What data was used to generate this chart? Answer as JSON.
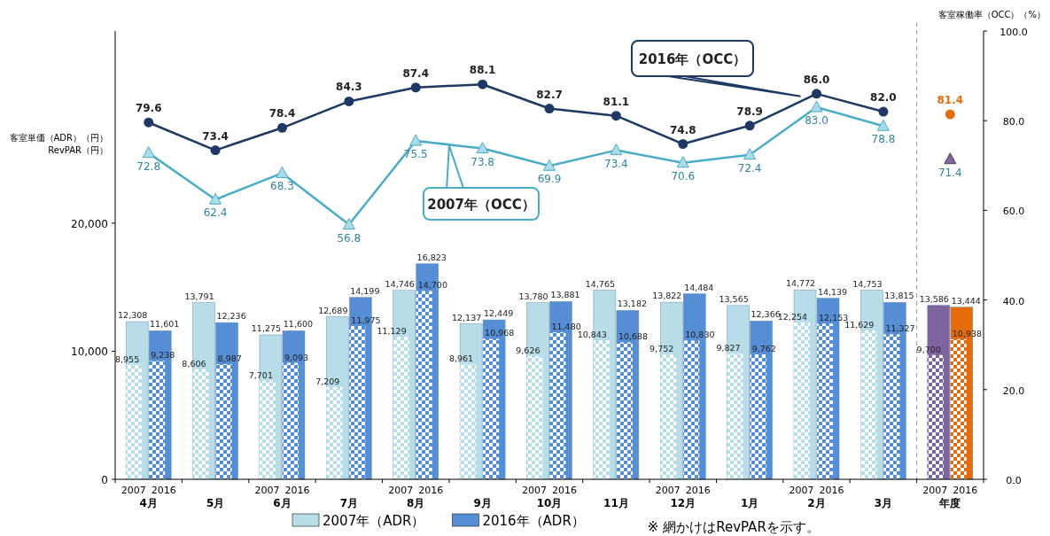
{
  "chart_data": {
    "type": "bar",
    "ylabel": "客室単価（ADR）（円）\nRevPAR（円）",
    "y2label": "客室稼働率（OCC）（%）",
    "categories": [
      "4月",
      "5月",
      "6月",
      "7月",
      "8月",
      "9月",
      "10月",
      "11月",
      "12月",
      "1月",
      "2月",
      "3月",
      "年度"
    ],
    "ylim": [
      0,
      35000
    ],
    "yticks": [
      0,
      {
        "value": 10000,
        "label": "10,000"
      },
      {
        "value": 20000,
        "label": "20,000"
      }
    ],
    "y2lim": [
      0,
      100
    ],
    "y2ticks": [
      {
        "value": 0,
        "label": "0.0"
      },
      {
        "value": 20,
        "label": "20.0"
      },
      {
        "value": 40,
        "label": "40.0"
      },
      {
        "value": 60,
        "label": "60.0"
      },
      {
        "value": 80,
        "label": "80.0"
      },
      {
        "value": 100,
        "label": "100.0"
      }
    ],
    "data_labels": true,
    "legend": "bottom",
    "series": [
      {
        "name": "2007年（ADR）",
        "color": "#b7dee8",
        "colors": [
          "#b7dee8",
          "#b7dee8",
          "#b7dee8",
          "#b7dee8",
          "#b7dee8",
          "#b7dee8",
          "#b7dee8",
          "#b7dee8",
          "#b7dee8",
          "#b7dee8",
          "#b7dee8",
          "#b7dee8",
          "#8064a2"
        ],
        "values": [
          12308,
          13791,
          11275,
          12689,
          14746,
          12137,
          13780,
          14765,
          13822,
          13565,
          14772,
          14753,
          13586
        ],
        "value_labels": [
          "12,308",
          "13,791",
          "11,275",
          "12,689",
          "14,746",
          "12,137",
          "13,780",
          "14,765",
          "13,822",
          "13,565",
          "14,772",
          "14,753",
          "13,586"
        ]
      },
      {
        "name": "2016年（ADR）",
        "color": "#558ed5",
        "colors": [
          "#558ed5",
          "#558ed5",
          "#558ed5",
          "#558ed5",
          "#558ed5",
          "#558ed5",
          "#558ed5",
          "#558ed5",
          "#558ed5",
          "#558ed5",
          "#558ed5",
          "#558ed5",
          "#e46c0a"
        ],
        "values": [
          11601,
          12236,
          11600,
          14199,
          16823,
          12449,
          13881,
          13182,
          14484,
          12366,
          14139,
          13815,
          13444
        ],
        "value_labels": [
          "11,601",
          "12,236",
          "11,600",
          "14,199",
          "16,823",
          "12,449",
          "13,881",
          "13,182",
          "14,484",
          "12,366",
          "14,139",
          "13,815",
          "13,444"
        ]
      },
      {
        "colors": [
          "#b7dee8",
          "#b7dee8",
          "#b7dee8",
          "#b7dee8",
          "#b7dee8",
          "#b7dee8",
          "#b7dee8",
          "#b7dee8",
          "#b7dee8",
          "#b7dee8",
          "#b7dee8",
          "#b7dee8",
          "#8064a2"
        ],
        "values": [
          8955,
          8606,
          7701,
          7209,
          11129,
          8961,
          9626,
          10843,
          9752,
          9827,
          12254,
          11629,
          9700
        ],
        "value_labels": [
          "8,955",
          "8,606",
          "7,701",
          "7,209",
          "11,129",
          "8,961",
          "9,626",
          "10,843",
          "9,752",
          "9,827",
          "12,254",
          "11,629",
          "9,700"
        ]
      },
      {
        "colors": [
          "#558ed5",
          "#558ed5",
          "#558ed5",
          "#558ed5",
          "#558ed5",
          "#558ed5",
          "#558ed5",
          "#558ed5",
          "#558ed5",
          "#558ed5",
          "#558ed5",
          "#558ed5",
          "#e46c0a"
        ],
        "values": [
          9238,
          8987,
          9093,
          11975,
          14700,
          10968,
          11480,
          10688,
          10830,
          9762,
          12153,
          11327,
          10938
        ],
        "value_labels": [
          "9,238",
          "8,987",
          "9,093",
          "11,975",
          "14,700",
          "10,968",
          "11,480",
          "10,688",
          "10,830",
          "9,762",
          "12,153",
          "11,327",
          "10,938"
        ]
      },
      {
        "name": "2007年（OCC）",
        "type": "line",
        "axis": "y2",
        "color": "#4bacc6",
        "marker": "triangle",
        "values": [
          72.8,
          62.4,
          68.3,
          56.8,
          75.5,
          73.8,
          69.9,
          73.4,
          70.6,
          72.4,
          83.0,
          78.8,
          null
        ],
        "value_labels": [
          "72.8",
          "62.4",
          "68.3",
          "56.8",
          "75.5",
          "73.8",
          "69.9",
          "73.4",
          "70.6",
          "72.4",
          "83.0",
          "78.8",
          null
        ]
      },
      {
        "name": "2016年（OCC）",
        "type": "line",
        "axis": "y2",
        "color": "#1f3864",
        "marker": "circle",
        "values": [
          79.6,
          73.4,
          78.4,
          84.3,
          87.4,
          88.1,
          82.7,
          81.1,
          74.8,
          78.9,
          86.0,
          82.0,
          null
        ],
        "value_labels": [
          "79.6",
          "73.4",
          "78.4",
          "84.3",
          "87.4",
          "88.1",
          "82.7",
          "81.1",
          "74.8",
          "78.9",
          "86.0",
          "82.0",
          null
        ]
      },
      {
        "type": "scatter",
        "axis": "y2",
        "color": "#8064a2",
        "marker": "triangle",
        "values": [
          null,
          null,
          null,
          null,
          null,
          null,
          null,
          null,
          null,
          null,
          null,
          null,
          71.4
        ]
      },
      {
        "type": "scatter",
        "axis": "y2",
        "color": "#e46c0a",
        "marker": "circle",
        "values": [
          null,
          null,
          null,
          null,
          null,
          null,
          null,
          null,
          null,
          null,
          null,
          null,
          81.4
        ]
      }
    ],
    "annotations": [
      "2007",
      "2016",
      "2007",
      "2016",
      "2007",
      "2016",
      "2007",
      "2016",
      "2007",
      "2016",
      "2007",
      "2016",
      "2007",
      "2016",
      "※ 網かけはRevPARを示す。"
    ]
  }
}
